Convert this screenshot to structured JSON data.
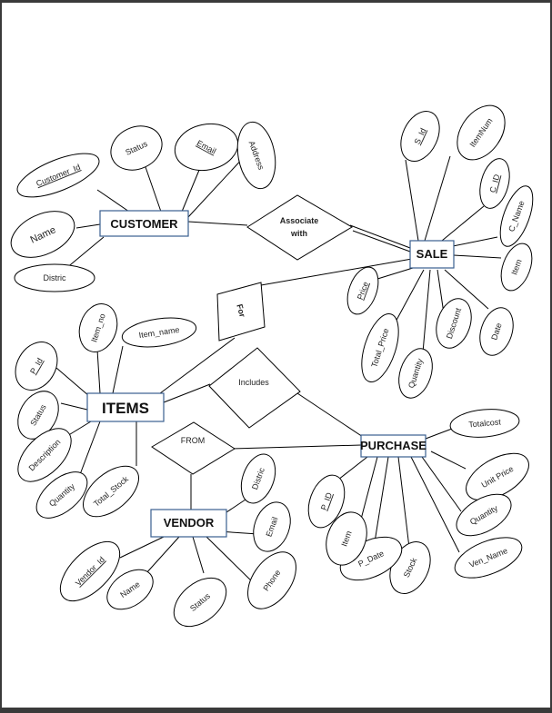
{
  "entities": {
    "customer": "CUSTOMER",
    "sale": "SALE",
    "items": "ITEMS",
    "purchase": "PURCHASE",
    "vendor": "VENDOR"
  },
  "relationships": {
    "associate_line1": "Associate",
    "associate_line2": "with",
    "for": "For",
    "includes": "Includes",
    "from": "FROM"
  },
  "attributes": {
    "customer": [
      "Customer_Id",
      "Status",
      "Email",
      "Address",
      "Name",
      "Distric"
    ],
    "sale": [
      "S_Id",
      "ItemNum",
      "C_ID",
      "C_Name",
      "Item",
      "Price",
      "Total_Price",
      "Quantity",
      "Discount",
      "Date"
    ],
    "items": [
      "P_Id",
      "Item_no",
      "Item_name",
      "Status",
      "Description",
      "Quantity",
      "Total_Stock"
    ],
    "purchase": [
      "Totalcost",
      "Unit Price",
      "Quantity",
      "Ven_Name",
      "Stock",
      "P_Date",
      "Item",
      "P_ID"
    ],
    "vendor": [
      "Vendor_Id",
      "Name",
      "Status",
      "Phone",
      "Email",
      "Distric"
    ]
  },
  "key_attributes": [
    "Customer_Id",
    "Email",
    "S_Id",
    "C_ID",
    "Price",
    "P_Id",
    "Vendor_Id",
    "P_ID"
  ]
}
